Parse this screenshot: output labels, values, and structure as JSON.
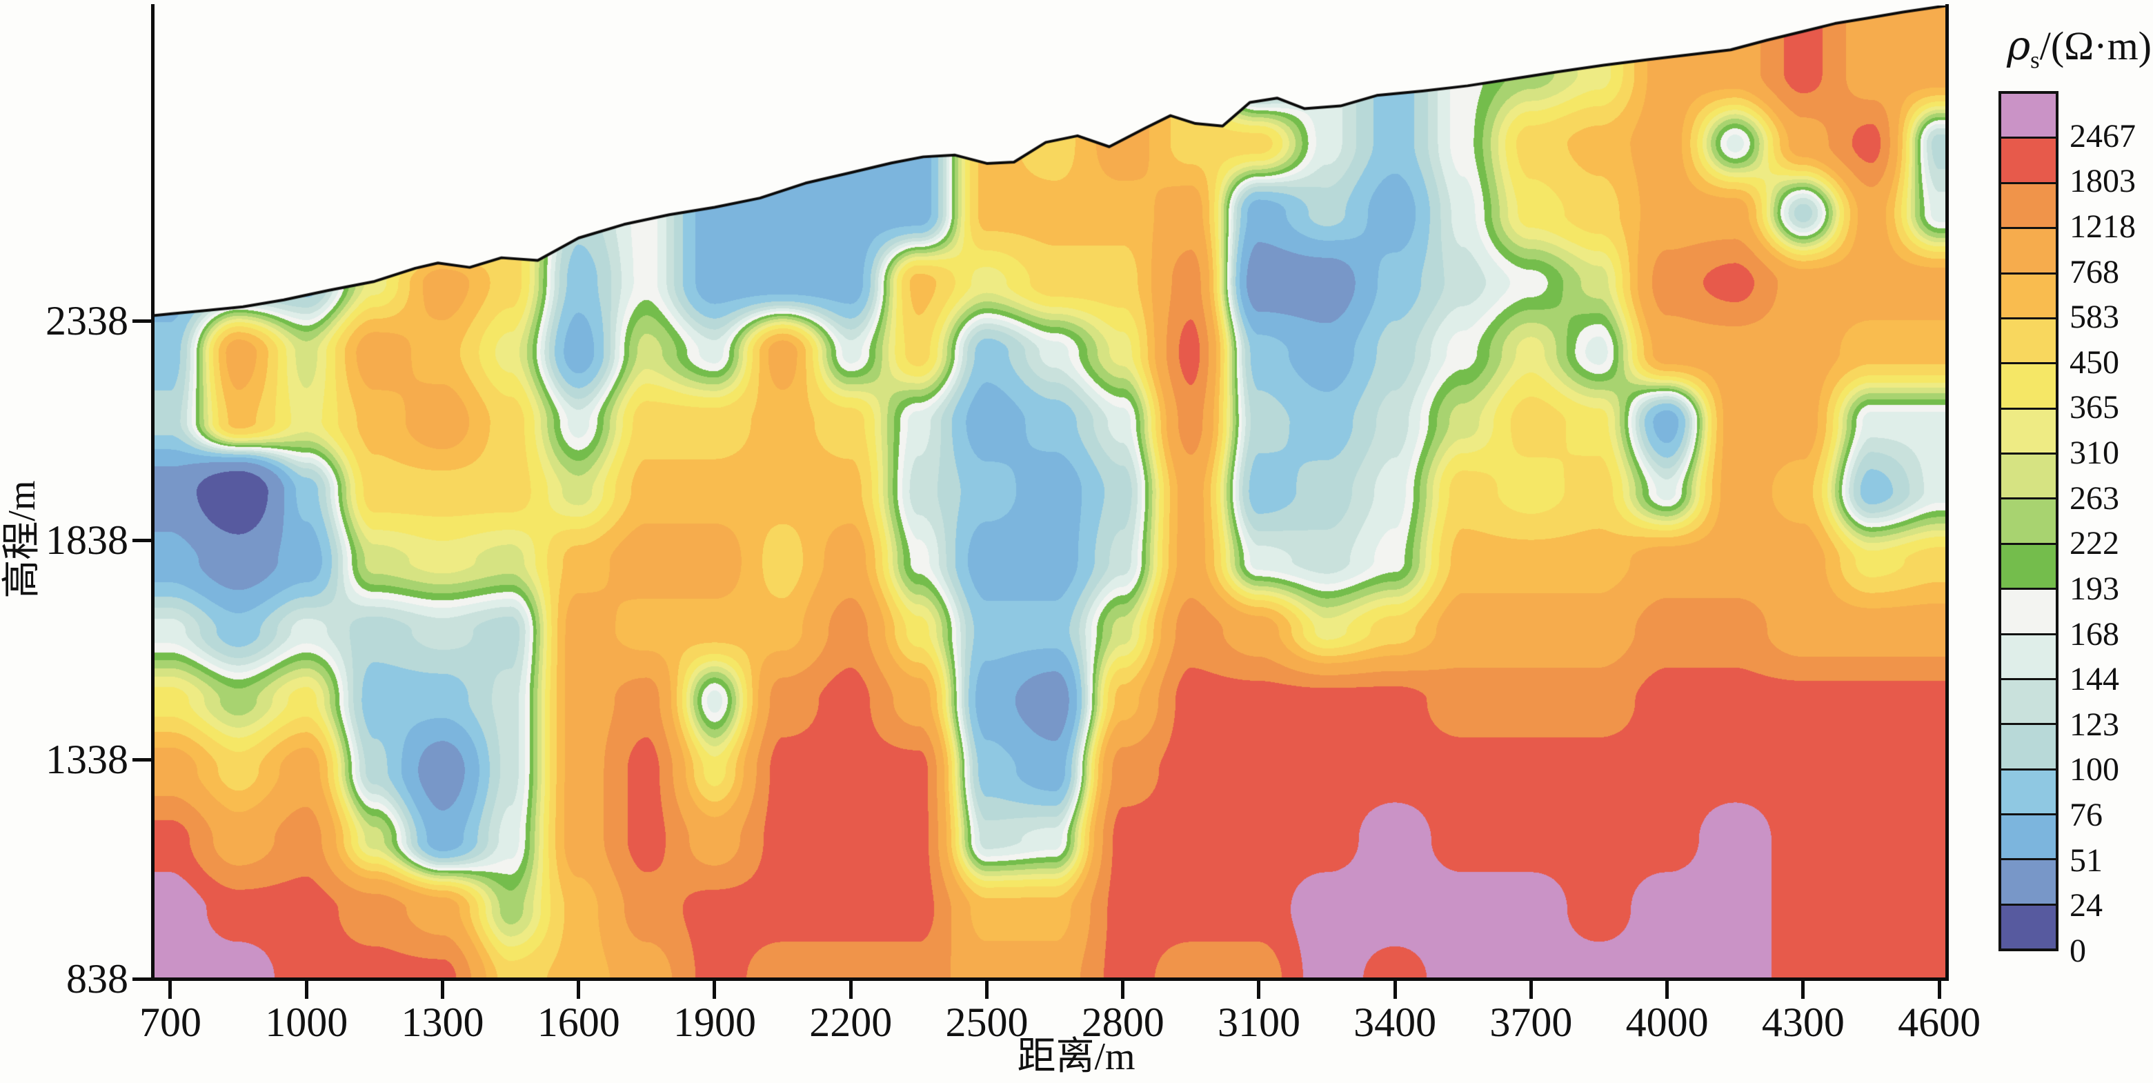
{
  "axes": {
    "x": {
      "title": "距离/m",
      "tick_labels": [
        "700",
        "1000",
        "1300",
        "1600",
        "1900",
        "2200",
        "2500",
        "2800",
        "3100",
        "3400",
        "3700",
        "4000",
        "4300",
        "4600"
      ],
      "tick_values": [
        700,
        1000,
        1300,
        1600,
        1900,
        2200,
        2500,
        2800,
        3100,
        3400,
        3700,
        4000,
        4300,
        4600
      ],
      "range_m": [
        662,
        4618
      ]
    },
    "y": {
      "title": "高程/m",
      "tick_labels": [
        "2338",
        "1838",
        "1338",
        "838"
      ],
      "tick_values": [
        2338,
        1838,
        1338,
        838
      ],
      "range_m": [
        838,
        3057
      ]
    }
  },
  "legend": {
    "title_rho": "ρ",
    "title_sub": "s",
    "title_rest": "/(Ω·m)",
    "labels_top_to_bottom": [
      "2467",
      "1803",
      "1218",
      "768",
      "583",
      "450",
      "365",
      "310",
      "263",
      "222",
      "193",
      "168",
      "144",
      "123",
      "100",
      "76",
      "51",
      "24",
      "0"
    ],
    "colors_top_to_bottom": [
      "#ca93c6",
      "#e75a4b",
      "#f0944a",
      "#f6ac4d",
      "#f9bc4f",
      "#f8d75e",
      "#f5e766",
      "#eeeb84",
      "#d6e382",
      "#a8d370",
      "#74bd4c",
      "#f3f4f1",
      "#dfeee9",
      "#c9e1dc",
      "#b8d9d8",
      "#8fc8e2",
      "#7cb5dd",
      "#7897c8",
      "#575a9f"
    ]
  },
  "chart_data": {
    "type": "heatmap",
    "title": "",
    "xlabel": "距离/m",
    "ylabel": "高程/m",
    "x_range_m": [
      662,
      4618
    ],
    "y_range_m": [
      838,
      3057
    ],
    "grid_off": true,
    "legend_position": "right",
    "color_scale": {
      "unit": "Ω·m",
      "thresholds": [
        0,
        24,
        51,
        76,
        100,
        123,
        144,
        168,
        193,
        222,
        263,
        310,
        365,
        450,
        583,
        768,
        1218,
        1803,
        2467
      ],
      "colors": [
        "#575a9f",
        "#7897c8",
        "#7cb5dd",
        "#8fc8e2",
        "#b8d9d8",
        "#c9e1dc",
        "#dfeee9",
        "#f3f4f1",
        "#74bd4c",
        "#a8d370",
        "#d6e382",
        "#eeeb84",
        "#f5e766",
        "#f8d75e",
        "#f9bc4f",
        "#f6ac4d",
        "#f0944a",
        "#e75a4b",
        "#ca93c6"
      ]
    },
    "terrain_profile_dist_elev_m": [
      [
        662,
        2350
      ],
      [
        700,
        2354
      ],
      [
        780,
        2362
      ],
      [
        860,
        2370
      ],
      [
        950,
        2386
      ],
      [
        1050,
        2408
      ],
      [
        1150,
        2428
      ],
      [
        1240,
        2458
      ],
      [
        1290,
        2470
      ],
      [
        1360,
        2460
      ],
      [
        1430,
        2482
      ],
      [
        1510,
        2476
      ],
      [
        1600,
        2527
      ],
      [
        1700,
        2558
      ],
      [
        1800,
        2580
      ],
      [
        1900,
        2597
      ],
      [
        2000,
        2618
      ],
      [
        2100,
        2652
      ],
      [
        2200,
        2676
      ],
      [
        2290,
        2698
      ],
      [
        2360,
        2712
      ],
      [
        2430,
        2716
      ],
      [
        2500,
        2697
      ],
      [
        2560,
        2700
      ],
      [
        2630,
        2745
      ],
      [
        2700,
        2760
      ],
      [
        2770,
        2735
      ],
      [
        2850,
        2778
      ],
      [
        2905,
        2806
      ],
      [
        2960,
        2788
      ],
      [
        3020,
        2782
      ],
      [
        3080,
        2836
      ],
      [
        3140,
        2846
      ],
      [
        3200,
        2822
      ],
      [
        3280,
        2828
      ],
      [
        3360,
        2852
      ],
      [
        3460,
        2862
      ],
      [
        3560,
        2874
      ],
      [
        3660,
        2890
      ],
      [
        3760,
        2906
      ],
      [
        3860,
        2921
      ],
      [
        3960,
        2934
      ],
      [
        4060,
        2946
      ],
      [
        4140,
        2956
      ],
      [
        4220,
        2978
      ],
      [
        4300,
        2998
      ],
      [
        4370,
        3016
      ],
      [
        4440,
        3028
      ],
      [
        4520,
        3042
      ],
      [
        4618,
        3057
      ]
    ],
    "grid": {
      "distances_m": [
        700,
        850,
        1000,
        1150,
        1300,
        1450,
        1600,
        1750,
        1900,
        2050,
        2200,
        2350,
        2500,
        2650,
        2800,
        2950,
        3100,
        3250,
        3400,
        3550,
        3700,
        3850,
        4000,
        4150,
        4300,
        4450,
        4600
      ],
      "elevations_m": [
        3060,
        2901,
        2743,
        2584,
        2425,
        2266,
        2108,
        1949,
        1790,
        1631,
        1473,
        1314,
        1155,
        997,
        838
      ],
      "resistivity_ohm_m": [
        [
          62,
          62,
          87,
          87,
          111,
          285,
          111,
          180,
          62,
          62,
          87,
          87,
          335,
          335,
          950,
          510,
          62,
          155,
          87,
          180,
          240,
          335,
          950,
          950,
          2100,
          950,
          950
        ],
        [
          62,
          62,
          87,
          87,
          111,
          285,
          111,
          180,
          62,
          62,
          87,
          87,
          335,
          335,
          950,
          510,
          62,
          155,
          87,
          180,
          240,
          335,
          950,
          950,
          2100,
          950,
          950
        ],
        [
          62,
          62,
          87,
          87,
          111,
          285,
          111,
          180,
          62,
          62,
          87,
          62,
          650,
          510,
          950,
          510,
          510,
          155,
          87,
          180,
          510,
          650,
          950,
          155,
          950,
          2100,
          111
        ],
        [
          62,
          62,
          87,
          87,
          111,
          510,
          111,
          180,
          62,
          62,
          62,
          62,
          650,
          650,
          650,
          950,
          62,
          111,
          62,
          155,
          400,
          510,
          950,
          950,
          111,
          950,
          155
        ],
        [
          62,
          87,
          87,
          335,
          950,
          510,
          87,
          180,
          62,
          62,
          62,
          650,
          335,
          510,
          510,
          1500,
          37,
          37,
          87,
          133,
          180,
          285,
          1500,
          2100,
          950,
          950,
          950
        ],
        [
          87,
          950,
          285,
          950,
          650,
          335,
          62,
          285,
          155,
          950,
          155,
          510,
          87,
          155,
          335,
          2100,
          87,
          62,
          111,
          180,
          335,
          155,
          950,
          950,
          950,
          650,
          650
        ],
        [
          111,
          650,
          335,
          650,
          950,
          510,
          155,
          510,
          510,
          650,
          510,
          155,
          62,
          87,
          155,
          1500,
          111,
          87,
          133,
          285,
          510,
          400,
          62,
          950,
          950,
          155,
          155
        ],
        [
          37,
          10,
          87,
          510,
          510,
          510,
          285,
          650,
          650,
          650,
          650,
          133,
          87,
          62,
          111,
          950,
          87,
          111,
          155,
          510,
          400,
          510,
          155,
          950,
          650,
          87,
          155
        ],
        [
          62,
          37,
          62,
          285,
          335,
          285,
          650,
          950,
          950,
          510,
          950,
          180,
          62,
          62,
          133,
          950,
          155,
          133,
          180,
          650,
          650,
          650,
          950,
          950,
          950,
          400,
          510
        ],
        [
          155,
          87,
          155,
          111,
          133,
          111,
          950,
          650,
          650,
          650,
          1500,
          400,
          87,
          87,
          285,
          1500,
          950,
          335,
          510,
          950,
          950,
          950,
          1500,
          1500,
          950,
          950,
          950
        ],
        [
          400,
          240,
          400,
          87,
          87,
          133,
          950,
          1500,
          155,
          1500,
          2100,
          950,
          62,
          37,
          650,
          2100,
          2100,
          2100,
          2100,
          1500,
          1500,
          1500,
          2100,
          2100,
          2100,
          2100,
          2100
        ],
        [
          950,
          510,
          950,
          111,
          37,
          133,
          950,
          2100,
          400,
          2100,
          2100,
          2100,
          87,
          62,
          1500,
          2100,
          2100,
          2100,
          2100,
          2100,
          2100,
          2100,
          2100,
          2100,
          2100,
          2100,
          2100
        ],
        [
          2100,
          950,
          1500,
          285,
          62,
          155,
          950,
          2100,
          950,
          2100,
          2100,
          2100,
          133,
          155,
          2100,
          2100,
          2100,
          2100,
          3000,
          2100,
          2100,
          2100,
          2100,
          3000,
          2100,
          2100,
          2100
        ],
        [
          3000,
          2100,
          2100,
          1500,
          950,
          240,
          650,
          1500,
          2100,
          2100,
          2100,
          2100,
          650,
          650,
          2100,
          2100,
          2100,
          3000,
          3000,
          3000,
          3000,
          2100,
          3000,
          3000,
          2100,
          2100,
          2100
        ],
        [
          3000,
          3000,
          2100,
          2100,
          2100,
          510,
          650,
          950,
          2100,
          1500,
          1500,
          1500,
          950,
          950,
          2100,
          1500,
          1500,
          3000,
          2100,
          3000,
          3000,
          3000,
          3000,
          3000,
          2100,
          2100,
          2100
        ]
      ]
    }
  }
}
